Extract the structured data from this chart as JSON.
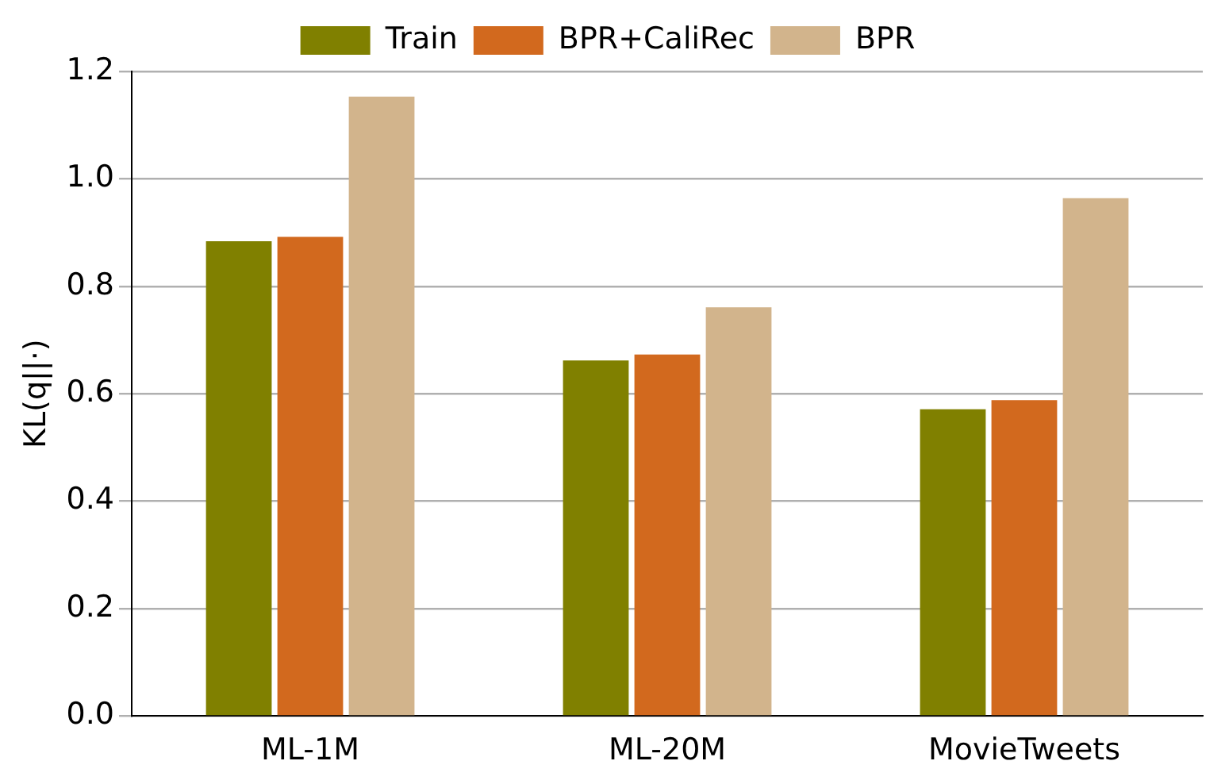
{
  "chart_data": {
    "type": "bar",
    "ylabel": "KL(q||·)",
    "categories": [
      "ML-1M",
      "ML-20M",
      "MovieTweets"
    ],
    "series": [
      {
        "name": "Train",
        "color": "#808000",
        "values": [
          0.884,
          0.662,
          0.571
        ]
      },
      {
        "name": "BPR+CaliRec",
        "color": "#d2691e",
        "values": [
          0.892,
          0.673,
          0.588
        ]
      },
      {
        "name": "BPR",
        "color": "#d2b48c",
        "values": [
          1.153,
          0.761,
          0.964
        ]
      }
    ],
    "ylim": [
      0,
      1.2
    ],
    "yticks": [
      {
        "value": 0,
        "label": "0.0"
      },
      0.2,
      0.4,
      0.6,
      0.8,
      {
        "value": 1,
        "label": "1.0"
      },
      1.2
    ],
    "grid": "y",
    "legend": "top"
  }
}
